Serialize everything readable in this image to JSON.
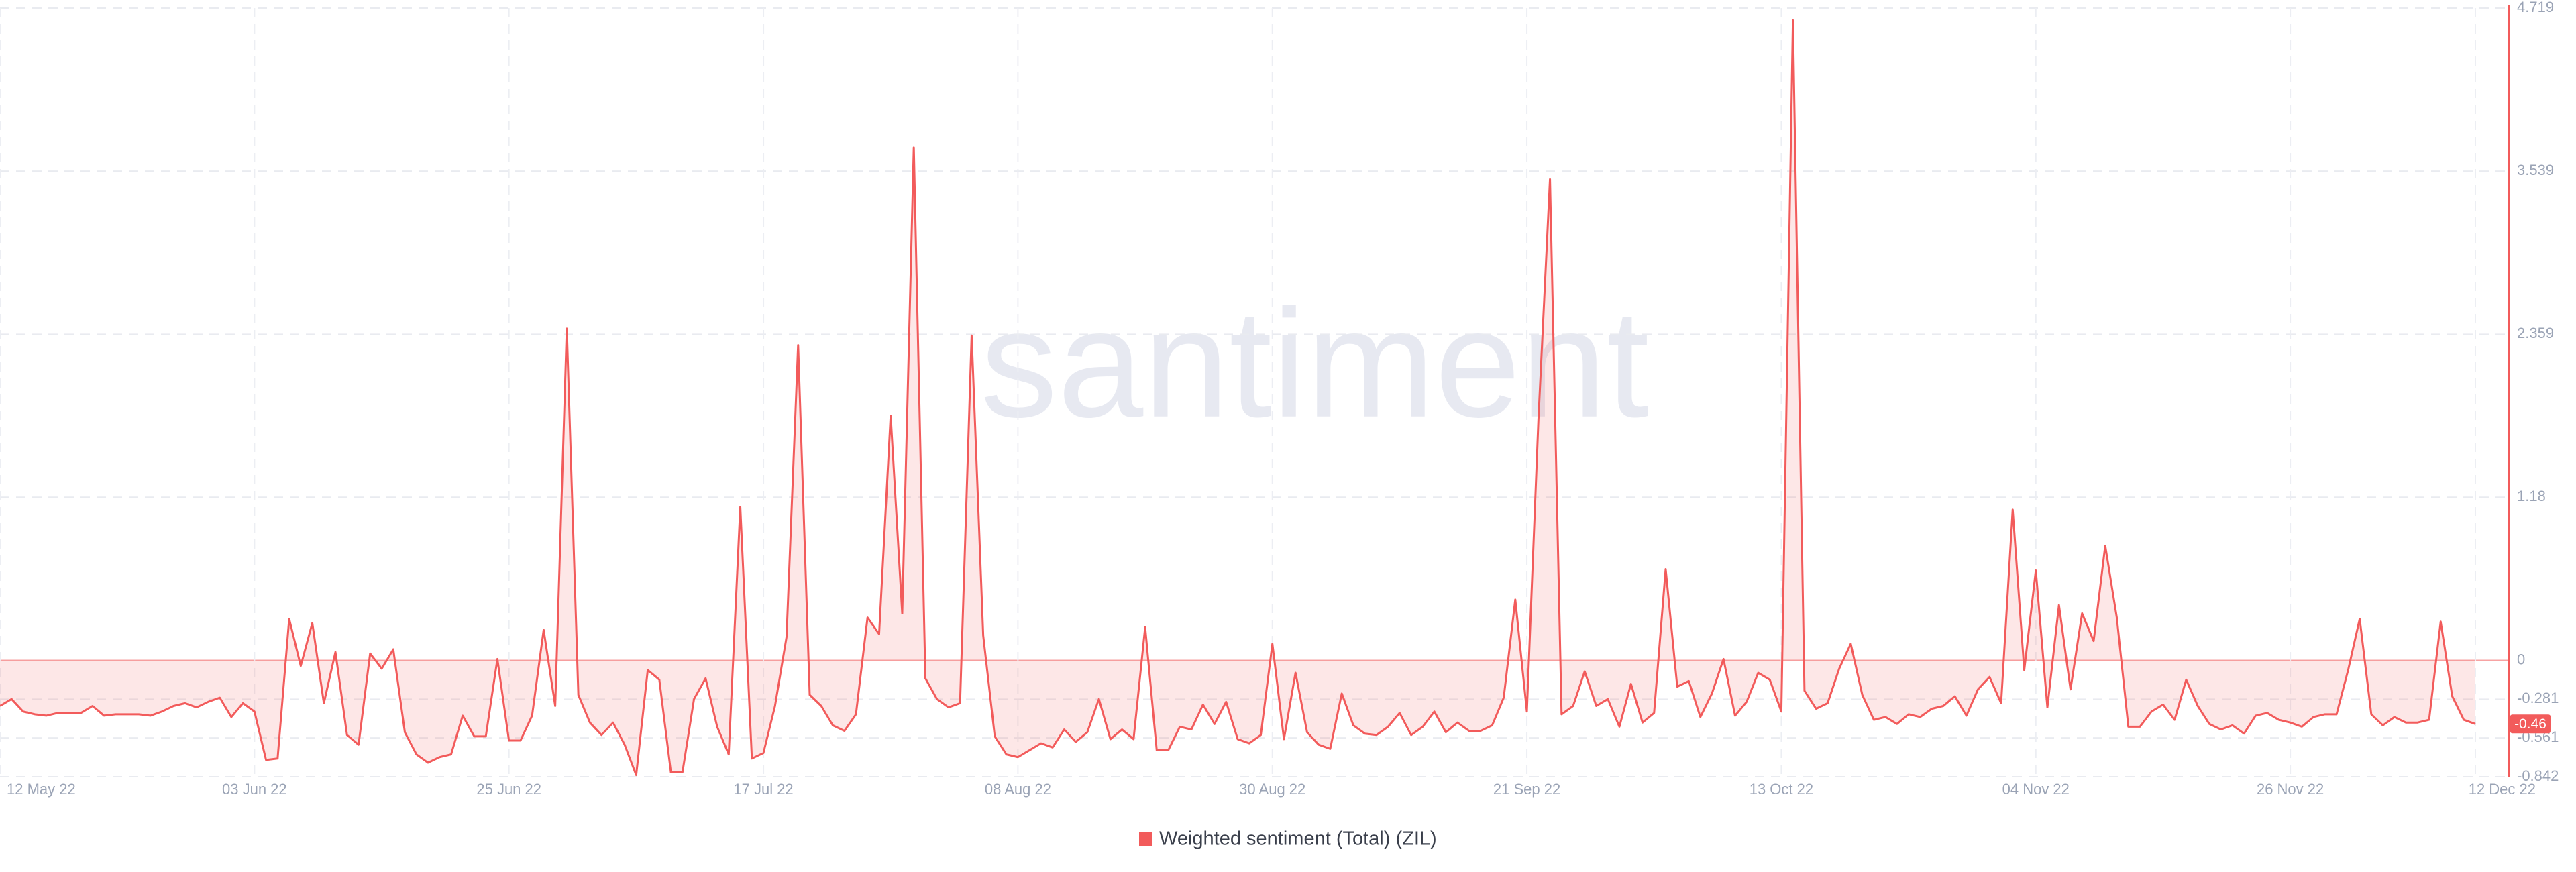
{
  "chart_data": {
    "type": "line",
    "watermark": "santiment",
    "categories": [
      "12 May 22",
      null,
      null,
      null,
      null,
      null,
      null,
      null,
      null,
      null,
      null,
      null,
      null,
      null,
      null,
      null,
      null,
      null,
      null,
      null,
      null,
      null,
      "03 Jun 22",
      null,
      null,
      null,
      null,
      null,
      null,
      null,
      null,
      null,
      null,
      null,
      null,
      null,
      null,
      null,
      null,
      null,
      null,
      null,
      null,
      null,
      "25 Jun 22",
      null,
      null,
      null,
      null,
      null,
      null,
      null,
      null,
      null,
      null,
      null,
      null,
      null,
      null,
      null,
      null,
      null,
      null,
      null,
      null,
      null,
      "17 Jul 22",
      null,
      null,
      null,
      null,
      null,
      null,
      null,
      null,
      null,
      null,
      null,
      null,
      null,
      null,
      null,
      null,
      null,
      null,
      null,
      null,
      null,
      "08 Aug 22",
      null,
      null,
      null,
      null,
      null,
      null,
      null,
      null,
      null,
      null,
      null,
      null,
      null,
      null,
      null,
      null,
      null,
      null,
      null,
      null,
      null,
      "30 Aug 22",
      null,
      null,
      null,
      null,
      null,
      null,
      null,
      null,
      null,
      null,
      null,
      null,
      null,
      null,
      null,
      null,
      null,
      null,
      null,
      null,
      null,
      "21 Sep 22",
      null,
      null,
      null,
      null,
      null,
      null,
      null,
      null,
      null,
      null,
      null,
      null,
      null,
      null,
      null,
      null,
      null,
      null,
      null,
      null,
      null,
      "13 Oct 22",
      null,
      null,
      null,
      null,
      null,
      null,
      null,
      null,
      null,
      null,
      null,
      null,
      null,
      null,
      null,
      null,
      null,
      null,
      null,
      null,
      null,
      "04 Nov 22",
      null,
      null,
      null,
      null,
      null,
      null,
      null,
      null,
      null,
      null,
      null,
      null,
      null,
      null,
      null,
      null,
      null,
      null,
      null,
      null,
      null,
      "26 Nov 22",
      null,
      null,
      null,
      null,
      null,
      null,
      null,
      null,
      null,
      null,
      null,
      null,
      null,
      null,
      null,
      "12 Dec 22"
    ],
    "series": [
      {
        "name": "Weighted sentiment (Total) (ZIL)",
        "color": "#f25b5b",
        "values": [
          -0.33,
          -0.28,
          -0.37,
          -0.39,
          -0.4,
          -0.38,
          -0.38,
          -0.38,
          -0.33,
          -0.4,
          -0.39,
          -0.39,
          -0.39,
          -0.4,
          -0.37,
          -0.33,
          -0.31,
          -0.34,
          -0.3,
          -0.27,
          -0.41,
          -0.31,
          -0.37,
          -0.72,
          -0.71,
          0.3,
          -0.04,
          0.27,
          -0.31,
          0.06,
          -0.54,
          -0.61,
          0.05,
          -0.06,
          0.08,
          -0.52,
          -0.68,
          -0.74,
          -0.7,
          -0.68,
          -0.4,
          -0.55,
          -0.55,
          0.01,
          -0.58,
          -0.58,
          -0.4,
          0.22,
          -0.33,
          2.4,
          -0.25,
          -0.45,
          -0.54,
          -0.45,
          -0.61,
          -0.83,
          -0.07,
          -0.14,
          -0.81,
          -0.81,
          -0.28,
          -0.13,
          -0.48,
          -0.68,
          1.11,
          -0.71,
          -0.67,
          -0.33,
          0.17,
          2.28,
          -0.25,
          -0.33,
          -0.47,
          -0.51,
          -0.39,
          0.31,
          0.19,
          1.77,
          0.34,
          3.71,
          -0.13,
          -0.28,
          -0.34,
          -0.31,
          2.35,
          0.18,
          -0.55,
          -0.68,
          -0.7,
          -0.65,
          -0.6,
          -0.63,
          -0.5,
          -0.59,
          -0.52,
          -0.28,
          -0.57,
          -0.5,
          -0.57,
          0.24,
          -0.65,
          -0.65,
          -0.48,
          -0.5,
          -0.32,
          -0.46,
          -0.3,
          -0.57,
          -0.6,
          -0.54,
          0.12,
          -0.57,
          -0.09,
          -0.52,
          -0.61,
          -0.64,
          -0.24,
          -0.47,
          -0.53,
          -0.54,
          -0.48,
          -0.38,
          -0.54,
          -0.48,
          -0.37,
          -0.52,
          -0.45,
          -0.51,
          -0.51,
          -0.47,
          -0.27,
          0.44,
          -0.37,
          1.74,
          3.48,
          -0.39,
          -0.33,
          -0.08,
          -0.33,
          -0.28,
          -0.48,
          -0.17,
          -0.45,
          -0.38,
          0.66,
          -0.19,
          -0.15,
          -0.41,
          -0.24,
          0.01,
          -0.4,
          -0.3,
          -0.09,
          -0.14,
          -0.37,
          4.63,
          -0.22,
          -0.35,
          -0.31,
          -0.06,
          0.12,
          -0.25,
          -0.43,
          -0.41,
          -0.46,
          -0.39,
          -0.41,
          -0.35,
          -0.33,
          -0.26,
          -0.4,
          -0.21,
          -0.12,
          -0.31,
          1.09,
          -0.07,
          0.65,
          -0.34,
          0.4,
          -0.21,
          0.34,
          0.14,
          0.83,
          0.31,
          -0.48,
          -0.48,
          -0.37,
          -0.32,
          -0.43,
          -0.14,
          -0.33,
          -0.46,
          -0.5,
          -0.47,
          -0.53,
          -0.4,
          -0.38,
          -0.43,
          -0.45,
          -0.48,
          -0.41,
          -0.39,
          -0.39,
          -0.07,
          0.3,
          -0.39,
          -0.47,
          -0.41,
          -0.45,
          -0.45,
          -0.43,
          0.28,
          -0.26,
          -0.43,
          -0.46
        ]
      }
    ],
    "ylim": [
      -0.842,
      4.719
    ],
    "yticks": [
      -0.842,
      -0.561,
      -0.281,
      0,
      1.18,
      2.359,
      3.539,
      4.719
    ],
    "grid": true,
    "legend": "bottom"
  }
}
